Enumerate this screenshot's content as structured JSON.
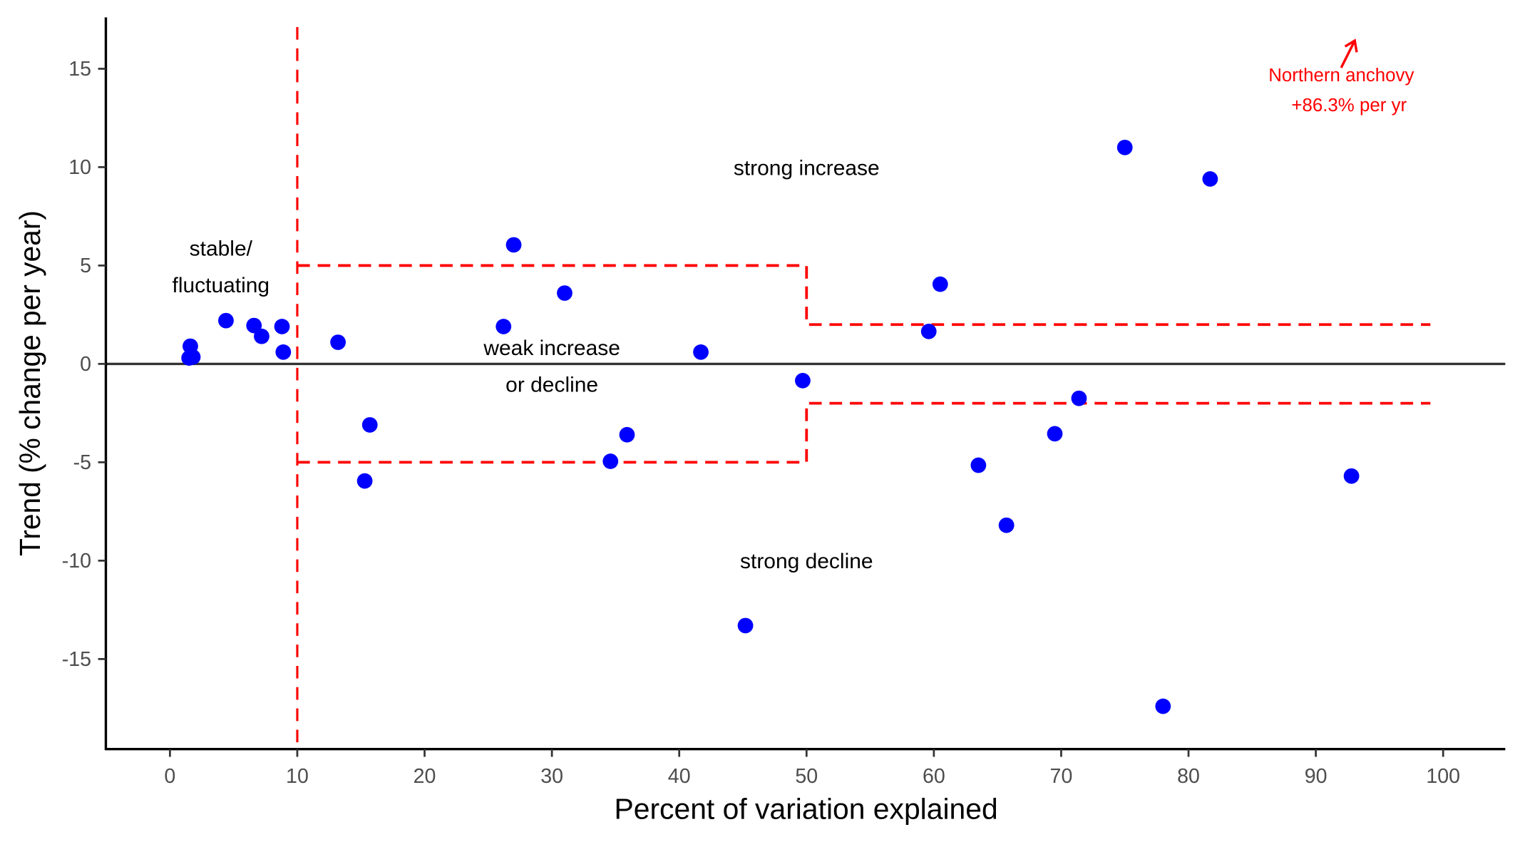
{
  "chart_data": {
    "type": "scatter",
    "xlabel": "Percent of variation explained",
    "ylabel": "Trend (% change per year)",
    "xlim": [
      -5,
      104
    ],
    "ylim": [
      -19.5,
      17.5
    ],
    "xticks": [
      0,
      10,
      20,
      30,
      40,
      50,
      60,
      70,
      80,
      90,
      100
    ],
    "yticks": [
      -15,
      -10,
      -5,
      0,
      5,
      10,
      15
    ],
    "grid": false,
    "point_color": "#0000ff",
    "threshold_color": "#ff0000",
    "points": [
      {
        "x": 1.6,
        "y": 0.9
      },
      {
        "x": 1.5,
        "y": 0.3
      },
      {
        "x": 1.8,
        "y": 0.35
      },
      {
        "x": 4.4,
        "y": 2.2
      },
      {
        "x": 6.6,
        "y": 1.95
      },
      {
        "x": 7.2,
        "y": 1.4
      },
      {
        "x": 8.8,
        "y": 1.9
      },
      {
        "x": 8.9,
        "y": 0.6
      },
      {
        "x": 13.2,
        "y": 1.1
      },
      {
        "x": 15.3,
        "y": -5.95
      },
      {
        "x": 15.7,
        "y": -3.1
      },
      {
        "x": 26.2,
        "y": 1.9
      },
      {
        "x": 27.0,
        "y": 6.05
      },
      {
        "x": 31.0,
        "y": 3.6
      },
      {
        "x": 34.6,
        "y": -4.95
      },
      {
        "x": 35.9,
        "y": -3.6
      },
      {
        "x": 41.7,
        "y": 0.6
      },
      {
        "x": 45.2,
        "y": -13.3
      },
      {
        "x": 49.7,
        "y": -0.85
      },
      {
        "x": 59.6,
        "y": 1.65
      },
      {
        "x": 60.5,
        "y": 4.05
      },
      {
        "x": 63.5,
        "y": -5.15
      },
      {
        "x": 65.7,
        "y": -8.2
      },
      {
        "x": 69.5,
        "y": -3.55
      },
      {
        "x": 71.4,
        "y": -1.75
      },
      {
        "x": 75.0,
        "y": 11.0
      },
      {
        "x": 78.0,
        "y": -17.4
      },
      {
        "x": 81.7,
        "y": 9.4
      },
      {
        "x": 92.8,
        "y": -5.7
      }
    ],
    "reference_line_y": 0,
    "threshold_vertical_x": 10,
    "threshold_upper": [
      [
        10,
        5
      ],
      [
        50,
        5
      ],
      [
        50,
        2
      ],
      [
        99,
        2
      ]
    ],
    "threshold_lower": [
      [
        10,
        -5
      ],
      [
        50,
        -5
      ],
      [
        50,
        -2
      ],
      [
        99,
        -2
      ]
    ],
    "annotations": [
      {
        "lines": [
          "stable/",
          "fluctuating"
        ],
        "x": 4,
        "y": 5.9
      },
      {
        "lines": [
          "weak increase",
          "or decline"
        ],
        "x": 30,
        "y": 0.85
      },
      {
        "lines": [
          "strong increase"
        ],
        "x": 50,
        "y": 10
      },
      {
        "lines": [
          "strong decline"
        ],
        "x": 50,
        "y": -10
      }
    ],
    "offscale_note": {
      "lines": [
        "Northern anchovy",
        "+86.3% per yr"
      ],
      "x": 92,
      "y": 14.5
    }
  }
}
